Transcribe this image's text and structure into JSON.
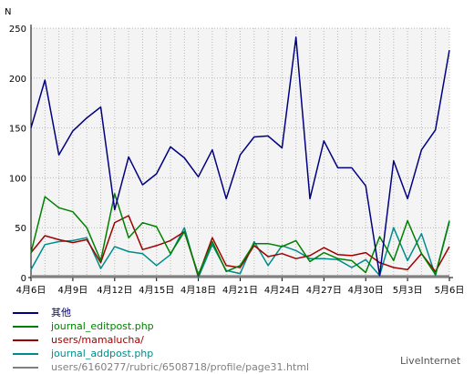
{
  "chart_data": {
    "type": "line",
    "ylabel": "N",
    "ylim": [
      0,
      250
    ],
    "yticks": [
      0,
      50,
      100,
      150,
      200,
      250
    ],
    "grid": true,
    "legend_position": "bottom-left",
    "categories": [
      "4月6日",
      "4月7日",
      "4月8日",
      "4月9日",
      "4月10日",
      "4月11日",
      "4月12日",
      "4月13日",
      "4月14日",
      "4月15日",
      "4月16日",
      "4月17日",
      "4月18日",
      "4月19日",
      "4月20日",
      "4月21日",
      "4月22日",
      "4月23日",
      "4月24日",
      "4月25日",
      "4月26日",
      "4月27日",
      "4月28日",
      "4月29日",
      "4月30日",
      "5月1日",
      "5月2日",
      "5月3日",
      "5月4日",
      "5月5日",
      "5月6日"
    ],
    "xtick_labels": [
      "4月6日",
      "4月9日",
      "4月12日",
      "4月15日",
      "4月18日",
      "4月21日",
      "4月24日",
      "4月27日",
      "4月30日",
      "5月3日",
      "5月6日"
    ],
    "series": [
      {
        "name": "其他",
        "color": "#000080",
        "values": [
          150,
          198,
          123,
          147,
          160,
          171,
          68,
          121,
          93,
          104,
          131,
          120,
          101,
          128,
          79,
          123,
          141,
          142,
          130,
          241,
          79,
          137,
          110,
          110,
          92,
          2,
          117,
          79,
          128,
          148,
          228
        ]
      },
      {
        "name": "journal_editpost.php",
        "color": "#008000",
        "values": [
          25,
          81,
          70,
          66,
          50,
          17,
          84,
          40,
          55,
          51,
          24,
          46,
          3,
          36,
          6,
          12,
          34,
          34,
          31,
          37,
          16,
          25,
          19,
          17,
          5,
          41,
          17,
          57,
          24,
          3,
          57
        ]
      },
      {
        "name": "users/mamalucha/",
        "color": "#a00000",
        "values": [
          25,
          42,
          38,
          35,
          38,
          15,
          55,
          62,
          28,
          32,
          37,
          46,
          2,
          40,
          12,
          10,
          32,
          21,
          24,
          19,
          22,
          30,
          23,
          22,
          25,
          15,
          10,
          8,
          24,
          6,
          31
        ]
      },
      {
        "name": "journal_addpost.php",
        "color": "#008b8b",
        "values": [
          8,
          33,
          36,
          37,
          40,
          9,
          31,
          26,
          24,
          12,
          23,
          50,
          0,
          33,
          7,
          4,
          36,
          12,
          32,
          27,
          19,
          19,
          18,
          10,
          18,
          2,
          50,
          17,
          44,
          2,
          56
        ]
      },
      {
        "name": "users/6160277/rubric/6508718/profile/page31.html",
        "color": "#808080",
        "values": [
          1,
          1,
          1,
          1,
          1,
          1,
          1,
          1,
          1,
          1,
          1,
          1,
          1,
          1,
          1,
          1,
          1,
          1,
          1,
          1,
          1,
          1,
          1,
          1,
          1,
          1,
          1,
          1,
          1,
          1,
          1
        ]
      }
    ]
  },
  "credit": "LiveInternet"
}
